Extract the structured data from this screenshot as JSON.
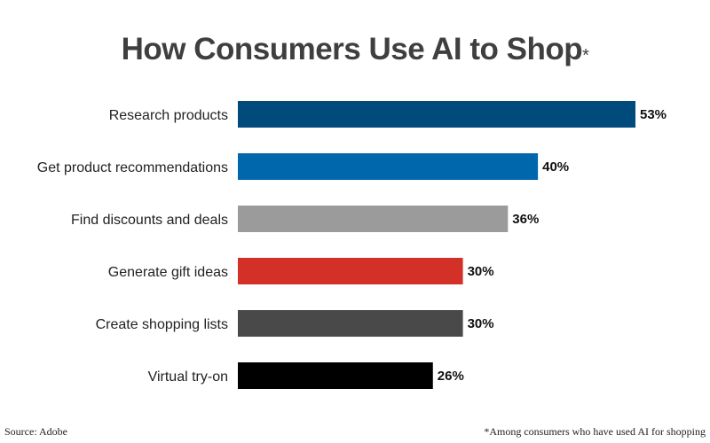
{
  "chart_data": {
    "type": "bar",
    "orientation": "horizontal",
    "title": "How Consumers Use AI to Shop",
    "title_marker": "*",
    "categories": [
      "Research products",
      "Get product recommendations",
      "Find discounts and deals",
      "Generate gift ideas",
      "Create shopping lists",
      "Virtual try-on"
    ],
    "values": [
      53,
      40,
      36,
      30,
      30,
      26
    ],
    "value_labels": [
      "53%",
      "40%",
      "36%",
      "30%",
      "30%",
      "26%"
    ],
    "bar_colors": [
      "#004a7c",
      "#0067ad",
      "#9b9b9b",
      "#d33128",
      "#494949",
      "#000000"
    ],
    "xlim": [
      0,
      53
    ],
    "grid": false,
    "legend": "none"
  },
  "source": "Source: Adobe",
  "footnote": "*Among consumers who have used AI for shopping"
}
